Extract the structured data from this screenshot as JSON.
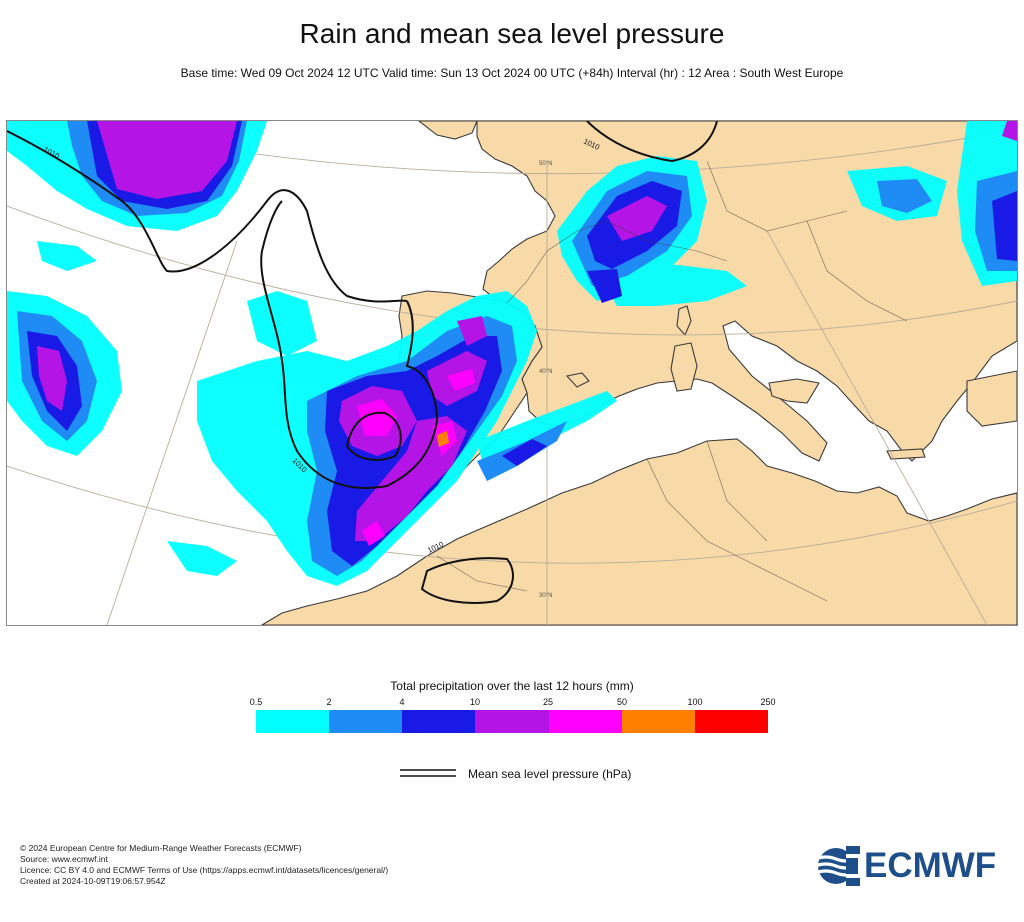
{
  "title": "Rain and mean sea level pressure",
  "subtitle": "Base time: Wed 09 Oct 2024 12 UTC Valid time: Sun 13 Oct 2024 00 UTC (+84h) Interval (hr) : 12 Area : South West Europe",
  "map": {
    "isobar_labels": [
      "1010",
      "1010",
      "1010",
      "1010"
    ],
    "graticule_labels": [
      "50°N",
      "40°N",
      "30°N"
    ],
    "colors": {
      "land": "#f8d9a8",
      "sea": "#ffffff",
      "coast": "#3a3a3a",
      "isobar": "#111111",
      "graticule": "#b9ad9b"
    }
  },
  "legend": {
    "title": "Total precipitation over the last 12 hours (mm)",
    "ticks": [
      "0.5",
      "2",
      "4",
      "10",
      "25",
      "50",
      "100",
      "250"
    ],
    "colors": [
      "#00ffff",
      "#1f8cf5",
      "#1a1ae6",
      "#b414e6",
      "#ff00ff",
      "#ff8000",
      "#ff0000"
    ],
    "mslp_label": "Mean sea level pressure (hPa)"
  },
  "footer": {
    "lines": [
      "© 2024 European Centre for Medium-Range Weather Forecasts (ECMWF)",
      "Source: www.ecmwf.int",
      "Licence: CC BY 4.0 and ECMWF Terms of Use (https://apps.ecmwf.int/datasets/licences/general/)",
      "Created at 2024-10-09T19:06:57.954Z"
    ]
  },
  "logo": {
    "text": "ECMWF",
    "icon": "ecmwf-logo-icon",
    "color": "#1f4f8b"
  }
}
